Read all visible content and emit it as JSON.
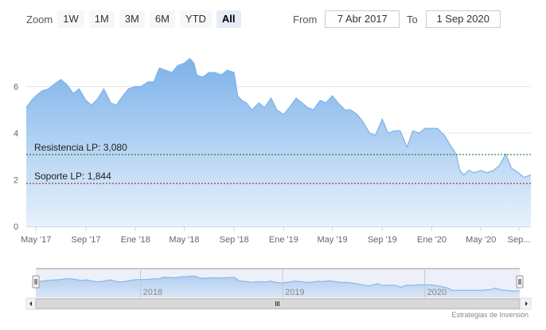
{
  "zoom": {
    "label": "Zoom",
    "buttons": [
      "1W",
      "1M",
      "3M",
      "6M",
      "YTD",
      "All"
    ],
    "active": "All"
  },
  "range": {
    "from_label": "From",
    "from_value": "7 Abr 2017",
    "to_label": "To",
    "to_value": "1 Sep 2020"
  },
  "credit": "Estrategias de Inversión",
  "colors": {
    "area_top": "#7cb2ea",
    "area_bottom": "#e8f1fc",
    "line": "#7cb2ea",
    "resistance": "#0a6f0a",
    "support": "#8b1c1c",
    "grid": "#e6e6e6",
    "navigator_bg": "#ccd5ea",
    "navigator_handle": "#f2f2f2"
  },
  "chart_data": {
    "type": "area",
    "x": [
      "2017-04-07",
      "2017-04-20",
      "2017-05-01",
      "2017-05-15",
      "2017-06-01",
      "2017-06-15",
      "2017-07-01",
      "2017-07-15",
      "2017-08-01",
      "2017-08-15",
      "2017-09-01",
      "2017-09-15",
      "2017-10-01",
      "2017-10-15",
      "2017-11-01",
      "2017-11-15",
      "2017-12-01",
      "2017-12-15",
      "2018-01-01",
      "2018-01-15",
      "2018-02-01",
      "2018-02-15",
      "2018-03-01",
      "2018-03-15",
      "2018-04-01",
      "2018-04-15",
      "2018-05-01",
      "2018-05-15",
      "2018-05-25",
      "2018-06-01",
      "2018-06-15",
      "2018-07-01",
      "2018-07-15",
      "2018-08-01",
      "2018-08-15",
      "2018-09-01",
      "2018-09-10",
      "2018-09-20",
      "2018-10-01",
      "2018-10-15",
      "2018-11-01",
      "2018-11-15",
      "2018-12-01",
      "2018-12-15",
      "2019-01-01",
      "2019-01-15",
      "2019-02-01",
      "2019-02-15",
      "2019-03-01",
      "2019-03-15",
      "2019-04-01",
      "2019-04-15",
      "2019-05-01",
      "2019-05-15",
      "2019-06-01",
      "2019-06-15",
      "2019-07-01",
      "2019-07-15",
      "2019-08-01",
      "2019-08-15",
      "2019-09-01",
      "2019-09-15",
      "2019-10-01",
      "2019-10-15",
      "2019-11-01",
      "2019-11-15",
      "2019-12-01",
      "2019-12-15",
      "2020-01-01",
      "2020-01-15",
      "2020-02-01",
      "2020-02-15",
      "2020-03-01",
      "2020-03-10",
      "2020-03-20",
      "2020-04-01",
      "2020-04-15",
      "2020-05-01",
      "2020-05-15",
      "2020-06-01",
      "2020-06-15",
      "2020-07-01",
      "2020-07-15",
      "2020-08-01",
      "2020-08-15",
      "2020-09-01"
    ],
    "values": [
      5.1,
      5.4,
      5.6,
      5.8,
      5.9,
      6.1,
      6.3,
      6.1,
      5.7,
      5.9,
      5.4,
      5.2,
      5.5,
      5.9,
      5.3,
      5.2,
      5.6,
      5.9,
      6.0,
      6.0,
      6.2,
      6.2,
      6.8,
      6.7,
      6.6,
      6.9,
      7.0,
      7.2,
      7.0,
      6.5,
      6.4,
      6.6,
      6.6,
      6.5,
      6.7,
      6.6,
      5.6,
      5.4,
      5.3,
      5.0,
      5.3,
      5.1,
      5.5,
      5.0,
      4.8,
      5.1,
      5.5,
      5.3,
      5.1,
      5.0,
      5.4,
      5.3,
      5.6,
      5.3,
      5.0,
      5.0,
      4.8,
      4.5,
      4.0,
      3.9,
      4.6,
      4.0,
      4.1,
      4.1,
      3.4,
      4.1,
      4.0,
      4.2,
      4.2,
      4.2,
      3.9,
      3.5,
      3.1,
      2.4,
      2.2,
      2.4,
      2.3,
      2.4,
      2.3,
      2.4,
      2.6,
      3.1,
      2.5,
      2.3,
      2.1,
      2.2
    ],
    "ylim": [
      0,
      8
    ],
    "y_ticks": [
      0,
      2,
      4,
      6
    ],
    "x_tick_labels": [
      "May '17",
      "Sep '17",
      "Ene '18",
      "May '18",
      "Sep '18",
      "Ene '19",
      "May '19",
      "Sep '19",
      "Ene '20",
      "May '20",
      "Sep..."
    ],
    "x_tick_dates": [
      "2017-05-01",
      "2017-09-01",
      "2018-01-01",
      "2018-05-01",
      "2018-09-01",
      "2019-01-01",
      "2019-05-01",
      "2019-09-01",
      "2020-01-01",
      "2020-05-01",
      "2020-09-01"
    ],
    "plot_lines": [
      {
        "label": "Resistencia LP: 3,080",
        "value": 3.08,
        "style": "dotted"
      },
      {
        "label": "Soporte LP: 1,844",
        "value": 1.844,
        "style": "dotted"
      }
    ],
    "navigator": {
      "year_labels": [
        "2018",
        "2019",
        "2020"
      ],
      "year_dates": [
        "2018-01-01",
        "2019-01-01",
        "2020-01-01"
      ]
    },
    "grid": true
  }
}
